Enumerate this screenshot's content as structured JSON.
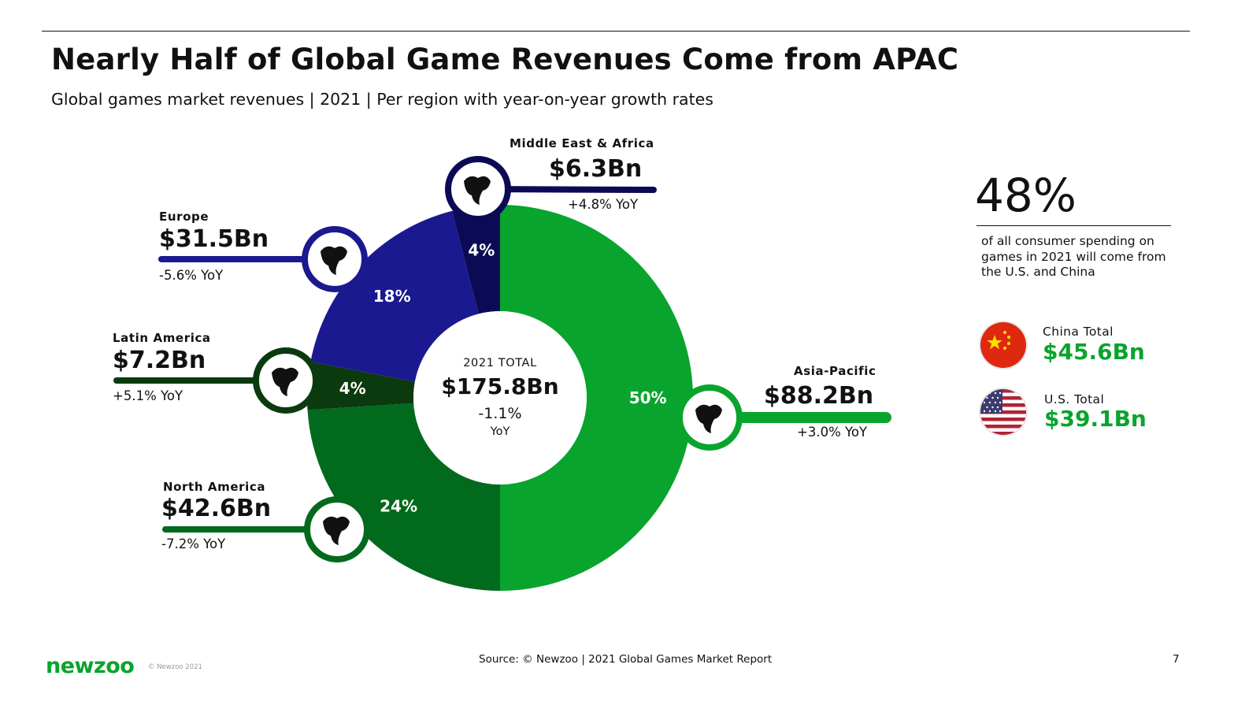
{
  "header": {
    "title": "Nearly Half of Global Game Revenues Come from APAC",
    "subtitle": "Global games market revenues | 2021 | Per region with year-on-year growth rates"
  },
  "chart_data": {
    "type": "pie",
    "title": "Nearly Half of Global Game Revenues Come from APAC",
    "subtitle": "Global games market revenues | 2021 | Per region with year-on-year growth rates",
    "total": {
      "label": "2021 TOTAL",
      "value": "$175.8Bn",
      "yoy": "-1.1%",
      "yoy_unit": "YoY"
    },
    "slices": [
      {
        "name": "Asia-Pacific",
        "percent": 50,
        "percent_label": "50%",
        "value": "$88.2Bn",
        "value_bn": 88.2,
        "yoy": "+3.0% YoY",
        "color": "#09a42d",
        "icon": "asia-pacific-map-icon"
      },
      {
        "name": "North America",
        "percent": 24,
        "percent_label": "24%",
        "value": "$42.6Bn",
        "value_bn": 42.6,
        "yoy": "-7.2% YoY",
        "color": "#026a1c",
        "icon": "north-america-map-icon"
      },
      {
        "name": "Latin America",
        "percent": 4,
        "percent_label": "4%",
        "value": "$7.2Bn",
        "value_bn": 7.2,
        "yoy": "+5.1% YoY",
        "color": "#0b3a0f",
        "icon": "south-america-map-icon"
      },
      {
        "name": "Europe",
        "percent": 18,
        "percent_label": "18%",
        "value": "$31.5Bn",
        "value_bn": 31.5,
        "yoy": "-5.6% YoY",
        "color": "#1b198f",
        "icon": "europe-map-icon"
      },
      {
        "name": "Middle East & Africa",
        "percent": 4,
        "percent_label": "4%",
        "value": "$6.3Bn",
        "value_bn": 6.3,
        "yoy": "+4.8% YoY",
        "color": "#0b0b55",
        "icon": "middle-east-africa-map-icon"
      }
    ]
  },
  "highlight": {
    "percent": "48%",
    "description": "of all consumer spending on games in 2021 will come from the U.S. and China"
  },
  "countries": [
    {
      "label": "China Total",
      "value": "$45.6Bn",
      "icon": "china-flag-icon"
    },
    {
      "label": "U.S. Total",
      "value": "$39.1Bn",
      "icon": "us-flag-icon"
    }
  ],
  "footer": {
    "logo": "newzoo",
    "copyright": "© Newzoo 2021",
    "source": "Source: © Newzoo | 2021 Global Games Market Report",
    "page_number": "7"
  },
  "colors": {
    "accent_green": "#09a42d"
  }
}
